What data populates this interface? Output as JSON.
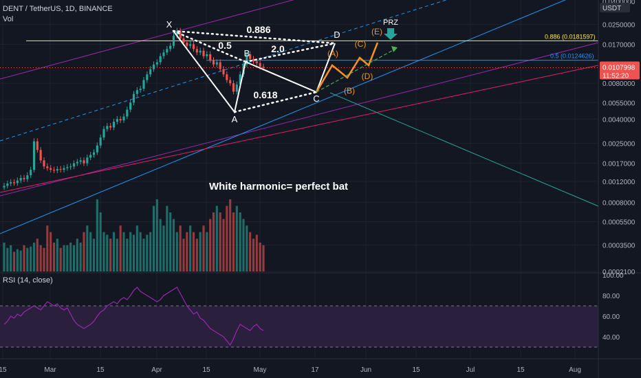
{
  "header": {
    "symbol_line": "DENT / TetherUS, 1D, BINANCE",
    "volume_label": "Vol",
    "rsi_label": "RSI (14, close)"
  },
  "price_axis": {
    "unit_label": "USDT",
    "top_label": "0.0400000",
    "ticks": [
      "0.0250000",
      "0.0170000",
      "0.0080000",
      "0.0055000",
      "0.0040000",
      "0.0025000",
      "0.0017000",
      "0.0012000",
      "0.0008000",
      "0.0005500",
      "0.0003500",
      "0.0002100"
    ],
    "current_price": "0.0107998",
    "countdown": "11:52:20",
    "fib_label_1": "0.886",
    "fib_label_2": "0.0181597",
    "fib_label_3": "0.5 (0.0124626)"
  },
  "rsi_axis": {
    "ticks": [
      "100.00",
      "80.00",
      "60.00",
      "40.00"
    ]
  },
  "time_axis": {
    "labels": [
      "15",
      "Mar",
      "15",
      "Apr",
      "15",
      "May",
      "17",
      "Jun",
      "15",
      "Jul",
      "15",
      "Aug"
    ]
  },
  "annotations": {
    "points": [
      "X",
      "A",
      "B",
      "C",
      "D"
    ],
    "ratios": [
      "0.886",
      "0.5",
      "2.0",
      "0.618"
    ],
    "projection": [
      "(A)",
      "(B)",
      "(C)",
      "(D)",
      "(E)"
    ],
    "prz": "PRZ",
    "caption": "White harmonic= perfect bat"
  },
  "colors": {
    "background": "#131722",
    "up": "#26a69a",
    "down": "#ef5350",
    "harmonic": "#ffffff",
    "projection": "#f7931a",
    "channel_purple": "#9c27b0",
    "trend_blue": "#2196f3",
    "fib_yellow": "#ffeb3b",
    "price_tag": "#ef5350",
    "rsi": "#9c27b0"
  },
  "chart_data": {
    "type": "candlestick",
    "title": "DENT / TetherUS, 1D, BINANCE",
    "scale": "log",
    "ylim": [
      0.00021,
      0.04
    ],
    "rsi_range": [
      20,
      100
    ],
    "rsi_bands": [
      30,
      70
    ],
    "last_price": 0.0107998,
    "fib_levels": [
      {
        "ratio": "0.886",
        "price": 0.0181597
      },
      {
        "ratio": "0.5",
        "price": 0.0124626
      }
    ],
    "candles_close": [
      0.0011,
      0.00115,
      0.00118,
      0.00116,
      0.00122,
      0.00128,
      0.00125,
      0.00135,
      0.0015,
      0.0026,
      0.0022,
      0.0018,
      0.0016,
      0.00155,
      0.0015,
      0.00148,
      0.00152,
      0.0015,
      0.00155,
      0.00158,
      0.0016,
      0.0017,
      0.00175,
      0.0018,
      0.0017,
      0.0019,
      0.002,
      0.0021,
      0.0024,
      0.0028,
      0.0033,
      0.0035,
      0.0034,
      0.0038,
      0.004,
      0.0039,
      0.0042,
      0.0048,
      0.0055,
      0.0065,
      0.007,
      0.0072,
      0.0085,
      0.0095,
      0.0105,
      0.0115,
      0.012,
      0.0135,
      0.0145,
      0.0155,
      0.0165,
      0.02,
      0.022,
      0.019,
      0.0175,
      0.0165,
      0.017,
      0.0155,
      0.0145,
      0.015,
      0.0135,
      0.014,
      0.0125,
      0.0115,
      0.012,
      0.0105,
      0.0095,
      0.0085,
      0.008,
      0.0068,
      0.0078,
      0.0095,
      0.0115,
      0.014,
      0.0128,
      0.0122,
      0.0118,
      0.011,
      0.0108
    ],
    "volume": [
      0.22,
      0.18,
      0.2,
      0.15,
      0.17,
      0.16,
      0.2,
      0.18,
      0.19,
      0.22,
      0.25,
      0.2,
      0.18,
      0.35,
      0.3,
      0.22,
      0.25,
      0.18,
      0.2,
      0.2,
      0.22,
      0.2,
      0.25,
      0.22,
      0.3,
      0.35,
      0.3,
      0.25,
      0.55,
      0.45,
      0.3,
      0.28,
      0.25,
      0.3,
      0.25,
      0.35,
      0.3,
      0.25,
      0.3,
      0.28,
      0.35,
      0.3,
      0.25,
      0.28,
      0.3,
      0.5,
      0.55,
      0.4,
      0.35,
      0.5,
      0.45,
      0.4,
      0.3,
      0.35,
      0.25,
      0.3,
      0.35,
      0.3,
      0.25,
      0.3,
      0.35,
      0.3,
      0.4,
      0.45,
      0.5,
      0.45,
      0.4,
      0.5,
      0.55,
      0.45,
      0.5,
      0.45,
      0.4,
      0.35,
      0.3,
      0.25,
      0.28,
      0.22,
      0.2
    ],
    "rsi": [
      52,
      55,
      60,
      58,
      62,
      60,
      64,
      66,
      68,
      70,
      68,
      66,
      70,
      74,
      72,
      70,
      72,
      68,
      66,
      68,
      62,
      56,
      52,
      50,
      48,
      50,
      52,
      55,
      60,
      64,
      66,
      70,
      72,
      74,
      72,
      76,
      78,
      76,
      80,
      85,
      88,
      84,
      82,
      80,
      78,
      76,
      74,
      76,
      80,
      82,
      84,
      86,
      88,
      82,
      76,
      70,
      66,
      62,
      64,
      58,
      56,
      52,
      48,
      46,
      44,
      42,
      40,
      36,
      32,
      38,
      46,
      52,
      50,
      48,
      46,
      50,
      52,
      48,
      46
    ]
  }
}
